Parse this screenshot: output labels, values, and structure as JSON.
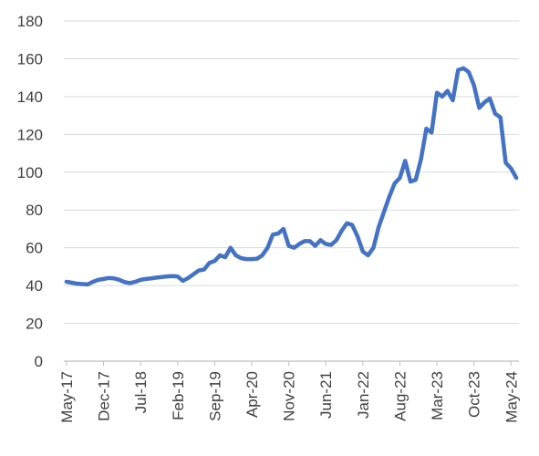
{
  "chart_data": {
    "type": "line",
    "title": "",
    "xlabel": "",
    "ylabel": "",
    "ylim": [
      0,
      180
    ],
    "yticks": [
      0,
      20,
      40,
      60,
      80,
      100,
      120,
      140,
      160,
      180
    ],
    "grid": "horizontal",
    "legend": "none",
    "x_tick_labels": [
      "May-17",
      "Dec-17",
      "Jul-18",
      "Feb-19",
      "Sep-19",
      "Apr-20",
      "Nov-20",
      "Jun-21",
      "Jan-22",
      "Aug-22",
      "Mar-23",
      "Oct-23",
      "May-24"
    ],
    "colors": {
      "line": "#4472C4",
      "grid": "#d9d9d9",
      "axis": "#bfbfbf",
      "text": "#404040"
    },
    "series": [
      {
        "x": [
          "May-17",
          "Jun-17",
          "Jul-17",
          "Aug-17",
          "Sep-17",
          "Oct-17",
          "Nov-17",
          "Dec-17",
          "Jan-18",
          "Feb-18",
          "Mar-18",
          "Apr-18",
          "May-18",
          "Jun-18",
          "Jul-18",
          "Aug-18",
          "Sep-18",
          "Oct-18",
          "Nov-18",
          "Dec-18",
          "Jan-19",
          "Feb-19",
          "Mar-19",
          "Apr-19",
          "May-19",
          "Jun-19",
          "Jul-19",
          "Aug-19",
          "Sep-19",
          "Oct-19",
          "Nov-19",
          "Dec-19",
          "Jan-20",
          "Feb-20",
          "Mar-20",
          "Apr-20",
          "May-20",
          "Jun-20",
          "Jul-20",
          "Aug-20",
          "Sep-20",
          "Oct-20",
          "Nov-20",
          "Dec-20",
          "Jan-21",
          "Feb-21",
          "Mar-21",
          "Apr-21",
          "May-21",
          "Jun-21",
          "Jul-21",
          "Aug-21",
          "Sep-21",
          "Oct-21",
          "Nov-21",
          "Dec-21",
          "Jan-22",
          "Feb-22",
          "Mar-22",
          "Apr-22",
          "May-22",
          "Jun-22",
          "Jul-22",
          "Aug-22",
          "Sep-22",
          "Oct-22",
          "Nov-22",
          "Dec-22",
          "Jan-23",
          "Feb-23",
          "Mar-23",
          "Apr-23",
          "May-23",
          "Jun-23",
          "Jul-23",
          "Aug-23",
          "Sep-23",
          "Oct-23",
          "Nov-23",
          "Dec-23",
          "Jan-24",
          "Feb-24",
          "Mar-24",
          "Apr-24",
          "May-24",
          "Jun-24"
        ],
        "values": [
          42,
          41.5,
          41,
          40.8,
          40.6,
          42,
          43,
          43.5,
          44,
          43.8,
          43,
          41.8,
          41.3,
          42,
          43,
          43.5,
          43.8,
          44.2,
          44.5,
          44.8,
          45,
          44.8,
          42.5,
          44,
          46,
          48,
          48.5,
          52,
          53,
          56,
          55,
          60,
          56,
          54.5,
          54,
          54,
          54.2,
          56,
          60,
          67,
          67.5,
          70,
          61,
          60,
          62,
          63.5,
          63.5,
          61,
          64,
          62,
          61.5,
          64,
          69,
          73,
          72,
          66,
          58,
          56,
          60,
          71,
          79,
          87,
          94,
          97,
          106,
          95,
          96,
          107,
          123,
          121,
          142,
          140,
          143,
          138,
          154,
          155,
          153,
          146,
          134,
          137,
          139,
          131,
          129,
          105,
          102,
          97
        ]
      }
    ]
  }
}
